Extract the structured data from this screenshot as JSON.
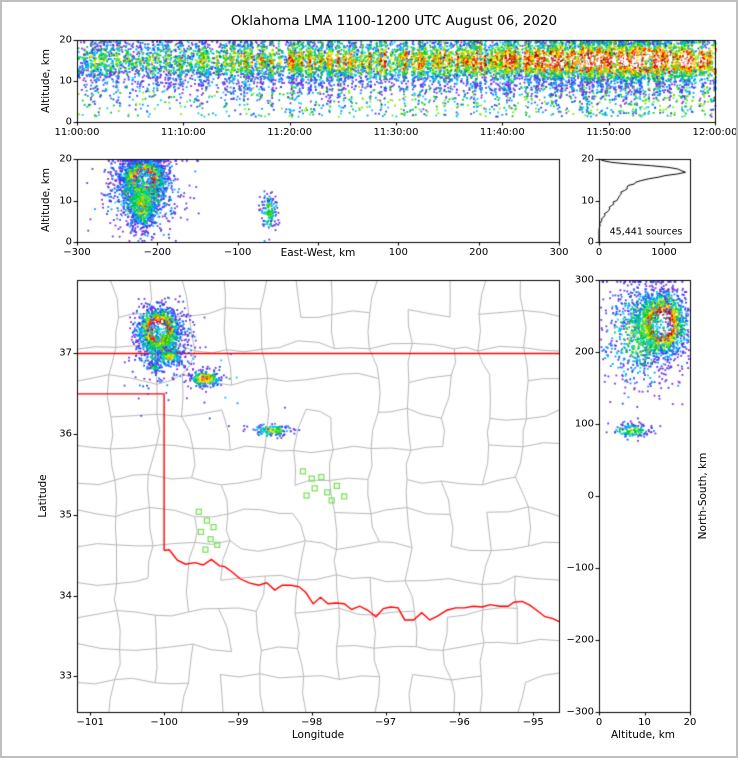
{
  "title": "Oklahoma LMA 1100-1200 UTC August 06, 2020",
  "colors": {
    "background": "#ffffff",
    "frame": "#000000",
    "state_border": "#ff0000",
    "county_line": "#b8b8b8",
    "station_marker": "#77e055",
    "histogram_line": "#000000",
    "lightning_palette": [
      "#7a30e0",
      "#2244ee",
      "#0099ff",
      "#00ccff",
      "#00cc22",
      "#7fe800",
      "#ffee00",
      "#ff9900",
      "#ff1e00",
      "#a00000",
      "#6e6e6e",
      "#ffffff"
    ]
  },
  "chart_data": [
    {
      "id": "time-height-panel",
      "type": "scatter",
      "ylabel": "Altitude, km",
      "xlim": [
        0,
        3600
      ],
      "ylim": [
        0,
        20
      ],
      "xtick_values": [
        0,
        600,
        1200,
        1800,
        2400,
        3000,
        3600
      ],
      "xtick_labels": [
        "11:00:00",
        "11:10:00",
        "11:20:00",
        "11:30:00",
        "11:40:00",
        "11:50:00",
        "12:00:00"
      ],
      "ytick_values": [
        0,
        10,
        20
      ],
      "ytick_labels": [
        "0",
        "10",
        "20"
      ],
      "band_center_km": 14.6,
      "band_sigma_km": 3.1,
      "low_fraction": 0.08,
      "columns": 300,
      "description": "VHF lightning sources, altitude vs time, density-colored speckle band 8-20 km growing denser through the hour"
    },
    {
      "id": "east-west-height-panel",
      "type": "scatter",
      "xlabel": "East-West, km",
      "ylabel": "Altitude, km",
      "xlim": [
        -300,
        300
      ],
      "ylim": [
        0,
        20
      ],
      "xtick_values": [
        -300,
        -200,
        -100,
        0,
        100,
        200,
        300
      ],
      "xtick_labels": [
        "−300",
        "−200",
        "−100",
        "0",
        "100",
        "200",
        "300"
      ],
      "ytick_values": [
        0,
        10,
        20
      ],
      "ytick_labels": [
        "0",
        "10",
        "20"
      ],
      "clusters": [
        {
          "x": -218,
          "y": 15.2,
          "sx": 13,
          "sy": 2.5,
          "count": 2300,
          "peak": 1.25
        },
        {
          "x": -220,
          "y": 9.0,
          "sx": 8,
          "sy": 2.8,
          "count": 900,
          "peak": 0.7
        },
        {
          "x": -218,
          "y": 12.0,
          "sx": 24,
          "sy": 4.8,
          "count": 700,
          "peak": 0.42
        },
        {
          "x": -62,
          "y": 7.5,
          "sx": 5,
          "sy": 2.3,
          "count": 140,
          "peak": 0.5
        }
      ]
    },
    {
      "id": "altitude-histogram-panel",
      "type": "line",
      "annotation": "45,441 sources",
      "xlim": [
        0,
        1400
      ],
      "ylim": [
        0,
        20
      ],
      "xtick_values": [
        0,
        1000
      ],
      "xtick_labels": [
        "0",
        "1000"
      ],
      "ytick_values": [
        0,
        10,
        20
      ],
      "ytick_labels": [
        "0",
        "10",
        "20"
      ],
      "profile_altitude_km": [
        0,
        2,
        3,
        3.6,
        4,
        4.4,
        4.8,
        5.2,
        5.6,
        6,
        6.4,
        6.8,
        7.2,
        7.6,
        8,
        8.4,
        8.8,
        9.2,
        9.6,
        10,
        10.4,
        10.8,
        11.2,
        11.6,
        12,
        12.4,
        12.8,
        13.2,
        13.6,
        14,
        14.4,
        14.8,
        15.2,
        15.6,
        16,
        16.4,
        16.8,
        17.2,
        17.6,
        18,
        18.4,
        18.8,
        19.2,
        19.6,
        20
      ],
      "profile_counts": [
        0,
        0,
        2,
        6,
        18,
        10,
        30,
        45,
        40,
        70,
        95,
        85,
        120,
        150,
        170,
        160,
        200,
        230,
        220,
        260,
        300,
        290,
        330,
        360,
        350,
        400,
        430,
        420,
        470,
        520,
        560,
        640,
        740,
        860,
        1000,
        1150,
        1280,
        1340,
        1260,
        1080,
        800,
        480,
        200,
        60,
        5
      ]
    },
    {
      "id": "plan-view-map",
      "type": "scatter",
      "xlabel": "Longitude",
      "ylabel": "Latitude",
      "xlim": [
        -101.18,
        -94.65
      ],
      "ylim": [
        32.56,
        37.91
      ],
      "xtick_values": [
        -101,
        -100,
        -99,
        -98,
        -97,
        -96,
        -95
      ],
      "xtick_labels": [
        "−101",
        "−100",
        "−99",
        "−98",
        "−97",
        "−96",
        "−95"
      ],
      "ytick_values": [
        33,
        34,
        35,
        36,
        37
      ],
      "ytick_labels": [
        "33",
        "34",
        "35",
        "36",
        "37"
      ],
      "clusters": [
        {
          "x": -100.08,
          "y": 37.3,
          "sx": 0.14,
          "sy": 0.14,
          "count": 1600,
          "peak": 1.25
        },
        {
          "x": -100.02,
          "y": 37.12,
          "sx": 0.2,
          "sy": 0.2,
          "count": 500,
          "peak": 0.45
        },
        {
          "x": -99.95,
          "y": 36.97,
          "sx": 0.09,
          "sy": 0.05,
          "count": 160,
          "peak": 0.6
        },
        {
          "x": -99.45,
          "y": 36.7,
          "sx": 0.11,
          "sy": 0.05,
          "count": 230,
          "peak": 0.8
        },
        {
          "x": -100.14,
          "y": 36.84,
          "sx": 0.05,
          "sy": 0.03,
          "count": 45,
          "peak": 0.4
        },
        {
          "x": -98.55,
          "y": 36.06,
          "sx": 0.14,
          "sy": 0.04,
          "count": 140,
          "peak": 0.55
        },
        {
          "x": -99.5,
          "y": 36.6,
          "sx": 0.5,
          "sy": 0.25,
          "count": 25,
          "peak": 0.25
        }
      ],
      "stations": [
        [
          -99.53,
          35.04
        ],
        [
          -99.42,
          34.93
        ],
        [
          -99.5,
          34.79
        ],
        [
          -99.37,
          34.7
        ],
        [
          -99.44,
          34.57
        ],
        [
          -99.28,
          34.63
        ],
        [
          -99.33,
          34.85
        ],
        [
          -98.12,
          35.54
        ],
        [
          -98.0,
          35.45
        ],
        [
          -97.87,
          35.47
        ],
        [
          -97.96,
          35.33
        ],
        [
          -98.07,
          35.24
        ],
        [
          -97.79,
          35.28
        ],
        [
          -97.66,
          35.36
        ],
        [
          -97.73,
          35.18
        ],
        [
          -97.56,
          35.23
        ]
      ],
      "state_border": [
        [
          [
            -101.18,
            37.0
          ],
          [
            -94.65,
            37.0
          ]
        ],
        [
          [
            -101.18,
            36.5
          ],
          [
            -100.0,
            36.5
          ]
        ],
        [
          [
            -100.0,
            36.5
          ],
          [
            -100.0,
            34.56
          ]
        ],
        [
          [
            -100.0,
            34.56
          ],
          [
            -99.93,
            34.57
          ],
          [
            -99.82,
            34.44
          ],
          [
            -99.71,
            34.39
          ],
          [
            -99.58,
            34.41
          ],
          [
            -99.47,
            34.38
          ],
          [
            -99.36,
            34.45
          ],
          [
            -99.25,
            34.37
          ],
          [
            -99.18,
            34.36
          ],
          [
            -99.1,
            34.31
          ],
          [
            -98.97,
            34.21
          ],
          [
            -98.85,
            34.16
          ],
          [
            -98.72,
            34.13
          ],
          [
            -98.61,
            34.16
          ],
          [
            -98.5,
            34.07
          ],
          [
            -98.4,
            34.13
          ],
          [
            -98.28,
            34.13
          ],
          [
            -98.17,
            34.11
          ],
          [
            -98.08,
            34.04
          ],
          [
            -97.98,
            33.9
          ],
          [
            -97.88,
            33.98
          ],
          [
            -97.78,
            33.9
          ],
          [
            -97.67,
            33.91
          ],
          [
            -97.56,
            33.9
          ],
          [
            -97.46,
            33.83
          ],
          [
            -97.35,
            33.87
          ],
          [
            -97.24,
            33.82
          ],
          [
            -97.13,
            33.74
          ],
          [
            -97.03,
            33.84
          ],
          [
            -96.93,
            33.86
          ],
          [
            -96.83,
            33.85
          ],
          [
            -96.74,
            33.7
          ],
          [
            -96.62,
            33.7
          ],
          [
            -96.51,
            33.79
          ],
          [
            -96.4,
            33.7
          ],
          [
            -96.29,
            33.75
          ],
          [
            -96.17,
            33.82
          ],
          [
            -96.05,
            33.85
          ],
          [
            -95.93,
            33.85
          ],
          [
            -95.81,
            33.87
          ],
          [
            -95.69,
            33.86
          ],
          [
            -95.58,
            33.89
          ],
          [
            -95.46,
            33.87
          ],
          [
            -95.34,
            33.87
          ],
          [
            -95.26,
            33.92
          ],
          [
            -95.15,
            33.93
          ],
          [
            -95.04,
            33.88
          ],
          [
            -94.94,
            33.81
          ],
          [
            -94.84,
            33.74
          ],
          [
            -94.74,
            33.72
          ],
          [
            -94.65,
            33.68
          ]
        ]
      ]
    },
    {
      "id": "north-south-height-panel",
      "type": "scatter",
      "xlabel": "Altitude, km",
      "ylabel": "North-South, km",
      "xlim": [
        0,
        20
      ],
      "ylim": [
        -300,
        300
      ],
      "xtick_values": [
        0,
        10,
        20
      ],
      "xtick_labels": [
        "0",
        "10",
        "20"
      ],
      "ytick_values": [
        -300,
        -200,
        -100,
        0,
        100,
        200,
        300
      ],
      "ytick_labels": [
        "−300",
        "−200",
        "−100",
        "0",
        "100",
        "200",
        "300"
      ],
      "clusters": [
        {
          "x": 13.5,
          "y": 240,
          "sx": 2.8,
          "sy": 22,
          "count": 2000,
          "peak": 1.25
        },
        {
          "x": 9.0,
          "y": 228,
          "sx": 4.5,
          "sy": 38,
          "count": 800,
          "peak": 0.45
        },
        {
          "x": 7.0,
          "y": 92,
          "sx": 2.3,
          "sy": 5,
          "count": 140,
          "peak": 0.5
        }
      ]
    }
  ]
}
